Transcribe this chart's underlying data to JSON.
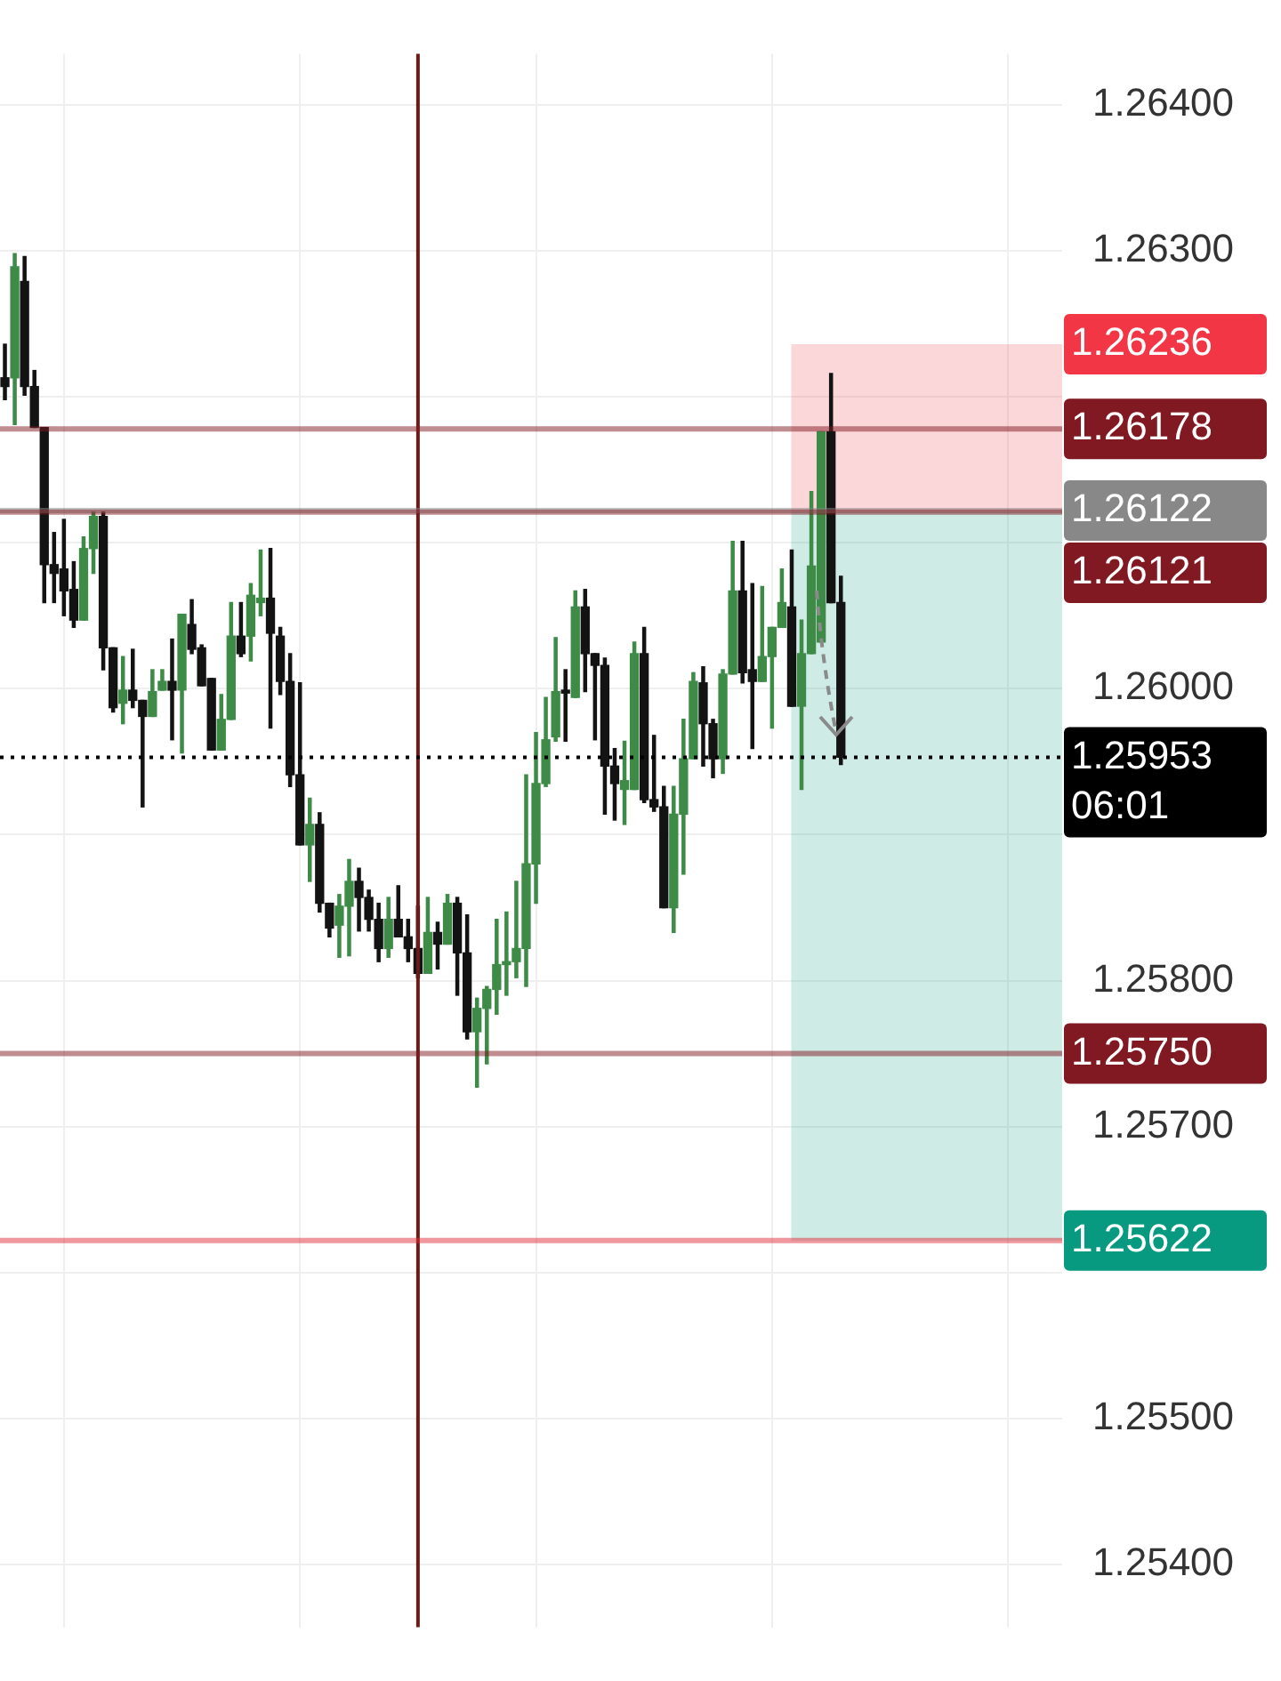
{
  "chart_data": {
    "type": "candlestick",
    "categories": [
      null,
      null,
      null,
      null,
      null,
      null,
      null,
      null,
      null,
      null,
      null,
      null,
      null,
      null,
      null,
      null,
      null,
      null,
      null,
      null,
      null,
      null,
      null,
      null,
      null,
      null,
      null,
      null,
      null,
      null,
      null,
      null,
      null,
      null,
      null,
      null,
      null,
      null,
      null,
      null,
      null,
      null,
      null,
      null,
      null,
      null,
      null,
      null,
      null,
      null,
      null,
      null,
      null,
      null,
      null,
      null,
      null,
      null,
      null,
      null,
      null,
      null,
      null,
      null,
      null,
      null,
      null,
      null,
      null,
      null,
      null,
      null,
      null,
      null,
      null,
      null,
      null,
      null,
      null,
      null,
      null,
      null,
      null,
      null,
      null,
      null,
      null,
      null,
      null,
      null,
      null,
      null,
      null,
      null,
      null,
      null,
      null,
      null,
      null,
      null,
      null,
      null,
      null,
      null,
      null,
      null,
      null,
      null
    ],
    "ohlc": [
      [
        1.26213,
        1.26236,
        1.26198,
        1.26207
      ],
      [
        1.26213,
        1.26298,
        1.26181,
        1.26289
      ],
      [
        1.26279,
        1.26296,
        1.26201,
        1.26207
      ],
      [
        1.26207,
        1.26218,
        1.26179,
        1.26179
      ],
      [
        1.26179,
        1.26179,
        1.26059,
        1.26085
      ],
      [
        1.26085,
        1.26107,
        1.26059,
        1.26079
      ],
      [
        1.26082,
        1.26116,
        1.2605,
        1.26067
      ],
      [
        1.26068,
        1.26087,
        1.26042,
        1.26047
      ],
      [
        1.26047,
        1.26104,
        1.26047,
        1.26096
      ],
      [
        1.26096,
        1.26121,
        1.26079,
        1.26118
      ],
      [
        1.26118,
        1.26121,
        1.26013,
        1.26028
      ],
      [
        1.26028,
        1.26028,
        1.25984,
        1.25987
      ],
      [
        1.2599,
        1.26022,
        1.25976,
        1.25999
      ],
      [
        1.25999,
        1.26027,
        1.25987,
        1.25992
      ],
      [
        1.25992,
        1.25992,
        1.25919,
        1.25981
      ],
      [
        1.25981,
        1.26013,
        1.25981,
        1.25998
      ],
      [
        1.25999,
        1.26013,
        1.25999,
        1.26005
      ],
      [
        1.26005,
        1.26034,
        1.25965,
        1.25999
      ],
      [
        1.25999,
        1.26051,
        1.25956,
        1.26051
      ],
      [
        1.26044,
        1.26061,
        1.26024,
        1.26027
      ],
      [
        1.26028,
        1.2603,
        1.26002,
        1.26002
      ],
      [
        1.26007,
        1.26007,
        1.25958,
        1.25958
      ],
      [
        1.25958,
        1.25996,
        1.25958,
        1.25979
      ],
      [
        1.25979,
        1.26059,
        1.25979,
        1.26036
      ],
      [
        1.26036,
        1.26059,
        1.26022,
        1.26024
      ],
      [
        1.26036,
        1.26072,
        1.26019,
        1.26064
      ],
      [
        1.26059,
        1.26095,
        1.2605,
        1.26062
      ],
      [
        1.26062,
        1.26096,
        1.25973,
        1.26038
      ],
      [
        1.26036,
        1.26042,
        1.25996,
        1.26005
      ],
      [
        1.26005,
        1.26024,
        1.25933,
        1.25941
      ],
      [
        1.25941,
        1.26004,
        1.25893,
        1.25893
      ],
      [
        1.25893,
        1.25925,
        1.25868,
        1.25907
      ],
      [
        1.25907,
        1.25915,
        1.25847,
        1.25853
      ],
      [
        1.25853,
        1.25853,
        1.2583,
        1.25836
      ],
      [
        1.25838,
        1.25859,
        1.25816,
        1.25851
      ],
      [
        1.25851,
        1.25883,
        1.25817,
        1.25868
      ],
      [
        1.25868,
        1.25877,
        1.25834,
        1.25857
      ],
      [
        1.25857,
        1.25862,
        1.25834,
        1.25842
      ],
      [
        1.25842,
        1.25853,
        1.25813,
        1.25822
      ],
      [
        1.25822,
        1.25857,
        1.25816,
        1.25842
      ],
      [
        1.25842,
        1.25865,
        1.2583,
        1.2583
      ],
      [
        1.2583,
        1.25842,
        1.25813,
        1.25822
      ],
      [
        1.25822,
        1.25851,
        1.25802,
        1.25805
      ],
      [
        1.25805,
        1.25857,
        1.25805,
        1.25833
      ],
      [
        1.25833,
        1.2584,
        1.25808,
        1.25825
      ],
      [
        1.25825,
        1.25859,
        1.25825,
        1.25853
      ],
      [
        1.25853,
        1.25857,
        1.2579,
        1.25819
      ],
      [
        1.25819,
        1.25845,
        1.2576,
        1.25765
      ],
      [
        1.25765,
        1.25788,
        1.25727,
        1.25781
      ],
      [
        1.25781,
        1.25796,
        1.25743,
        1.25794
      ],
      [
        1.25794,
        1.25842,
        1.25777,
        1.25811
      ],
      [
        1.25811,
        1.25847,
        1.2579,
        1.25813
      ],
      [
        1.25813,
        1.25868,
        1.25802,
        1.25822
      ],
      [
        1.25822,
        1.25941,
        1.25796,
        1.2588
      ],
      [
        1.2588,
        1.2597,
        1.25853,
        1.25935
      ],
      [
        1.25935,
        1.25994,
        1.25933,
        1.25965
      ],
      [
        1.25967,
        1.26035,
        1.25964,
        1.25998
      ],
      [
        1.25999,
        1.26013,
        1.25964,
        1.25997
      ],
      [
        1.25994,
        1.26067,
        1.25994,
        1.26056
      ],
      [
        1.26056,
        1.26068,
        1.25998,
        1.26024
      ],
      [
        1.26024,
        1.26024,
        1.25965,
        1.26016
      ],
      [
        1.26016,
        1.26021,
        1.25914,
        1.25947
      ],
      [
        1.25947,
        1.25959,
        1.2591,
        1.25935
      ],
      [
        1.25931,
        1.25964,
        1.25907,
        1.25937
      ],
      [
        1.25931,
        1.26032,
        1.25931,
        1.26024
      ],
      [
        1.26024,
        1.26042,
        1.25922,
        1.25924
      ],
      [
        1.25924,
        1.25968,
        1.25916,
        1.25919
      ],
      [
        1.25919,
        1.25933,
        1.2585,
        1.2585
      ],
      [
        1.2585,
        1.25933,
        1.25833,
        1.25914
      ],
      [
        1.25914,
        1.25979,
        1.25873,
        1.25952
      ],
      [
        1.25952,
        1.26011,
        1.25952,
        1.26005
      ],
      [
        1.26004,
        1.26015,
        1.25947,
        1.25976
      ],
      [
        1.25976,
        1.25979,
        1.25939,
        1.25952
      ],
      [
        1.25952,
        1.26013,
        1.25942,
        1.2601
      ],
      [
        1.2601,
        1.26101,
        1.2601,
        1.26067
      ],
      [
        1.26067,
        1.26101,
        1.26004,
        1.26011
      ],
      [
        1.26013,
        1.26072,
        1.25959,
        1.26005
      ],
      [
        1.26005,
        1.2607,
        1.26005,
        1.26022
      ],
      [
        1.26022,
        1.26042,
        1.25973,
        1.26042
      ],
      [
        1.26042,
        1.26082,
        1.26042,
        1.26059
      ],
      [
        1.26056,
        1.26095,
        1.25988,
        1.25988
      ],
      [
        1.25988,
        1.26047,
        1.25931,
        1.26024
      ],
      [
        1.26024,
        1.26135,
        1.26024,
        1.26084
      ],
      [
        1.26032,
        1.26176,
        1.26032,
        1.26176
      ],
      [
        1.26176,
        1.26216,
        1.26059,
        1.26059
      ],
      [
        1.26059,
        1.26077,
        1.25948,
        1.25953
      ],
      null,
      null,
      null,
      null,
      null,
      null,
      null,
      null,
      null,
      null,
      null,
      null,
      null,
      null,
      null,
      null,
      null,
      null,
      null,
      null,
      null,
      null
    ],
    "colors": [
      "#131313",
      "#3d8b47",
      "#131313",
      "#131313",
      "#131313",
      "#131313",
      "#131313",
      "#131313",
      "#3d8b47",
      "#3d8b47",
      "#131313",
      "#131313",
      "#3d8b47",
      "#131313",
      "#131313",
      "#3d8b47",
      "#3d8b47",
      "#131313",
      "#3d8b47",
      "#131313",
      "#131313",
      "#131313",
      "#3d8b47",
      "#3d8b47",
      "#131313",
      "#3d8b47",
      "#3d8b47",
      "#131313",
      "#131313",
      "#131313",
      "#131313",
      "#3d8b47",
      "#131313",
      "#131313",
      "#3d8b47",
      "#3d8b47",
      "#131313",
      "#131313",
      "#131313",
      "#3d8b47",
      "#131313",
      "#131313",
      "#131313",
      "#3d8b47",
      "#131313",
      "#3d8b47",
      "#131313",
      "#131313",
      "#3d8b47",
      "#3d8b47",
      "#3d8b47",
      "#3d8b47",
      "#3d8b47",
      "#3d8b47",
      "#3d8b47",
      "#3d8b47",
      "#3d8b47",
      "#131313",
      "#3d8b47",
      "#131313",
      "#131313",
      "#131313",
      "#131313",
      "#3d8b47",
      "#3d8b47",
      "#131313",
      "#131313",
      "#131313",
      "#3d8b47",
      "#3d8b47",
      "#3d8b47",
      "#131313",
      "#131313",
      "#3d8b47",
      "#3d8b47",
      "#131313",
      "#131313",
      "#3d8b47",
      "#3d8b47",
      "#3d8b47",
      "#131313",
      "#3d8b47",
      "#3d8b47",
      "#3d8b47",
      "#131313",
      "#131313",
      null,
      null,
      null,
      null,
      null,
      null,
      null,
      null,
      null,
      null,
      null,
      null,
      null,
      null,
      null,
      null,
      null,
      null,
      null,
      null,
      null,
      null
    ],
    "ylim": [
      1.25357,
      1.26435
    ],
    "yticks": [
      {
        "value": 1.254,
        "label": "1.25400"
      },
      {
        "value": 1.255,
        "label": "1.25500"
      },
      {
        "value": 1.256,
        "label": null
      },
      {
        "value": 1.257,
        "label": "1.25700"
      },
      {
        "value": 1.258,
        "label": "1.25800"
      },
      {
        "value": 1.259,
        "label": null
      },
      {
        "value": 1.26,
        "label": "1.26000"
      },
      {
        "value": 1.261,
        "label": null
      },
      {
        "value": 1.262,
        "label": null
      },
      {
        "value": 1.263,
        "label": "1.26300"
      },
      {
        "value": 1.264,
        "label": "1.26400"
      }
    ],
    "grid": true,
    "tick_labels": "y",
    "bands": [
      {
        "axis": "y",
        "from": 1.26121,
        "to": 1.26236,
        "label": "1.26236",
        "color": "#f23645"
      },
      {
        "axis": "y",
        "from": 1.26121,
        "to": 1.25622,
        "label": "1.25622",
        "color": "#089981"
      }
    ],
    "ref_lines": [
      {
        "axis": "y",
        "value": 1.26178,
        "label": "1.26178",
        "color": "#801922"
      },
      {
        "axis": "y",
        "value": 1.26122,
        "label": "1.26122",
        "color": "#888888"
      },
      {
        "axis": "y",
        "value": 1.26121,
        "label": "1.26121",
        "color": "#801922"
      },
      {
        "axis": "y",
        "value": 1.2575,
        "label": "1.25750",
        "color": "#801922"
      },
      {
        "axis": "y",
        "value": 1.25622,
        "color": "#e0303a"
      },
      {
        "axis": "y",
        "value": 1.25953,
        "label": "1.25953",
        "color": "#000000",
        "line_style": "dotted"
      }
    ],
    "annotations": [
      "06:01"
    ]
  }
}
